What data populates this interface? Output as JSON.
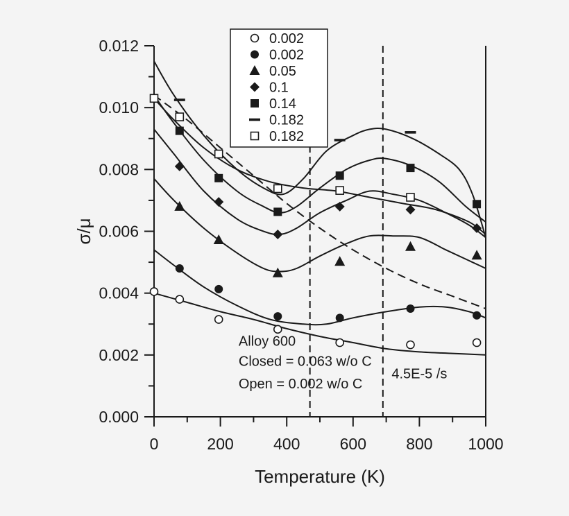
{
  "chart_data": {
    "type": "scatter",
    "title": "",
    "xlabel": "Temperature (K)",
    "ylabel": "σ/μ",
    "xlim": [
      0,
      1000
    ],
    "ylim": [
      0.0,
      0.012
    ],
    "x_ticks": [
      "0",
      "200",
      "400",
      "600",
      "800",
      "1000"
    ],
    "y_ticks": [
      "0.000",
      "0.002",
      "0.004",
      "0.006",
      "0.008",
      "0.010",
      "0.012"
    ],
    "y_tick_values": [
      0.0,
      0.002,
      0.004,
      0.006,
      0.008,
      0.01,
      0.012
    ],
    "x_tick_values": [
      0,
      200,
      400,
      600,
      800,
      1000
    ],
    "legend_position": "top-center",
    "series": [
      {
        "name": "0.002",
        "marker": "open-circle",
        "points": [
          [
            0,
            0.00405
          ],
          [
            77,
            0.0038
          ],
          [
            195,
            0.00315
          ],
          [
            373,
            0.00283
          ],
          [
            560,
            0.0024
          ],
          [
            773,
            0.00233
          ],
          [
            973,
            0.0024
          ]
        ]
      },
      {
        "name": "0.002",
        "marker": "filled-circle",
        "points": [
          [
            77,
            0.0048
          ],
          [
            195,
            0.00413
          ],
          [
            373,
            0.00325
          ],
          [
            560,
            0.0032
          ],
          [
            773,
            0.0035
          ],
          [
            973,
            0.00328
          ]
        ]
      },
      {
        "name": "0.05",
        "marker": "filled-triangle",
        "points": [
          [
            77,
            0.0068
          ],
          [
            195,
            0.00572
          ],
          [
            373,
            0.00465
          ],
          [
            560,
            0.00502
          ],
          [
            773,
            0.0055
          ],
          [
            973,
            0.00522
          ]
        ]
      },
      {
        "name": "0.1",
        "marker": "filled-diamond",
        "points": [
          [
            77,
            0.0081
          ],
          [
            195,
            0.00695
          ],
          [
            373,
            0.0059
          ],
          [
            560,
            0.0068
          ],
          [
            773,
            0.0067
          ],
          [
            973,
            0.0061
          ]
        ]
      },
      {
        "name": "0.14",
        "marker": "filled-square",
        "points": [
          [
            77,
            0.00925
          ],
          [
            195,
            0.00772
          ],
          [
            373,
            0.00663
          ],
          [
            560,
            0.0078
          ],
          [
            773,
            0.00805
          ],
          [
            973,
            0.00688
          ]
        ]
      },
      {
        "name": "0.182",
        "marker": "dash",
        "points": [
          [
            77,
            0.01025
          ],
          [
            560,
            0.00895
          ],
          [
            773,
            0.0092
          ]
        ]
      },
      {
        "name": "0.182",
        "marker": "open-square",
        "points": [
          [
            0,
            0.0103
          ],
          [
            77,
            0.0097
          ],
          [
            195,
            0.0085
          ],
          [
            373,
            0.00738
          ],
          [
            560,
            0.00732
          ],
          [
            773,
            0.0071
          ]
        ]
      }
    ],
    "fit_curves": [
      {
        "name": "fit-0.002-open",
        "style": "solid",
        "points": [
          [
            0,
            0.004
          ],
          [
            100,
            0.0037
          ],
          [
            200,
            0.0034
          ],
          [
            300,
            0.00315
          ],
          [
            400,
            0.00285
          ],
          [
            500,
            0.0026
          ],
          [
            600,
            0.0024
          ],
          [
            700,
            0.0022
          ],
          [
            800,
            0.0021
          ],
          [
            900,
            0.00205
          ],
          [
            1000,
            0.002
          ]
        ]
      },
      {
        "name": "fit-0.002-filled",
        "style": "solid",
        "points": [
          [
            0,
            0.0054
          ],
          [
            60,
            0.0049
          ],
          [
            150,
            0.0042
          ],
          [
            250,
            0.0036
          ],
          [
            350,
            0.00315
          ],
          [
            450,
            0.003
          ],
          [
            520,
            0.003
          ],
          [
            600,
            0.0032
          ],
          [
            700,
            0.0034
          ],
          [
            800,
            0.00355
          ],
          [
            880,
            0.00355
          ],
          [
            950,
            0.0034
          ],
          [
            1000,
            0.0032
          ]
        ]
      },
      {
        "name": "fit-0.05",
        "style": "solid",
        "points": [
          [
            0,
            0.0077
          ],
          [
            60,
            0.007
          ],
          [
            150,
            0.0061
          ],
          [
            250,
            0.0053
          ],
          [
            330,
            0.0048
          ],
          [
            380,
            0.0047
          ],
          [
            430,
            0.0048
          ],
          [
            500,
            0.0052
          ],
          [
            580,
            0.0056
          ],
          [
            650,
            0.00585
          ],
          [
            720,
            0.00585
          ],
          [
            800,
            0.0058
          ],
          [
            880,
            0.0054
          ],
          [
            950,
            0.00505
          ],
          [
            1000,
            0.0048
          ]
        ]
      },
      {
        "name": "fit-0.1",
        "style": "solid",
        "points": [
          [
            0,
            0.0093
          ],
          [
            60,
            0.0085
          ],
          [
            150,
            0.0073
          ],
          [
            250,
            0.0064
          ],
          [
            330,
            0.006
          ],
          [
            380,
            0.0059
          ],
          [
            430,
            0.0061
          ],
          [
            500,
            0.0066
          ],
          [
            580,
            0.007
          ],
          [
            650,
            0.0073
          ],
          [
            720,
            0.0072
          ],
          [
            800,
            0.007
          ],
          [
            880,
            0.0066
          ],
          [
            950,
            0.0062
          ],
          [
            1000,
            0.0058
          ]
        ]
      },
      {
        "name": "fit-0.14",
        "style": "solid",
        "points": [
          [
            0,
            0.0104
          ],
          [
            60,
            0.0095
          ],
          [
            150,
            0.0083
          ],
          [
            250,
            0.0073
          ],
          [
            330,
            0.0068
          ],
          [
            380,
            0.0066
          ],
          [
            430,
            0.0068
          ],
          [
            500,
            0.0074
          ],
          [
            580,
            0.008
          ],
          [
            650,
            0.0083
          ],
          [
            700,
            0.00835
          ],
          [
            780,
            0.0081
          ],
          [
            860,
            0.0076
          ],
          [
            940,
            0.0068
          ],
          [
            1000,
            0.0063
          ]
        ]
      },
      {
        "name": "fit-0.182-peak",
        "style": "solid",
        "points": [
          [
            0,
            0.0115
          ],
          [
            60,
            0.0104
          ],
          [
            150,
            0.0091
          ],
          [
            250,
            0.008
          ],
          [
            330,
            0.0074
          ],
          [
            390,
            0.0072
          ],
          [
            450,
            0.0077
          ],
          [
            520,
            0.0086
          ],
          [
            600,
            0.0091
          ],
          [
            650,
            0.0093
          ],
          [
            700,
            0.0093
          ],
          [
            780,
            0.009
          ],
          [
            860,
            0.0085
          ],
          [
            920,
            0.008
          ],
          [
            960,
            0.0072
          ],
          [
            1000,
            0.0058
          ]
        ]
      },
      {
        "name": "fit-0.182-open",
        "style": "solid",
        "points": [
          [
            0,
            0.0103
          ],
          [
            60,
            0.0096
          ],
          [
            150,
            0.0087
          ],
          [
            250,
            0.008
          ],
          [
            350,
            0.0076
          ],
          [
            450,
            0.0074
          ],
          [
            550,
            0.0073
          ],
          [
            650,
            0.0071
          ],
          [
            750,
            0.0069
          ],
          [
            850,
            0.0067
          ],
          [
            950,
            0.0063
          ],
          [
            1000,
            0.0059
          ]
        ]
      },
      {
        "name": "fit-0.182-dashed",
        "style": "dashed",
        "points": [
          [
            0,
            0.0104
          ],
          [
            100,
            0.0096
          ],
          [
            200,
            0.0087
          ],
          [
            300,
            0.0078
          ],
          [
            400,
            0.0069
          ],
          [
            500,
            0.0061
          ],
          [
            600,
            0.0054
          ],
          [
            700,
            0.0048
          ],
          [
            800,
            0.0043
          ],
          [
            900,
            0.0039
          ],
          [
            1000,
            0.0035
          ]
        ]
      }
    ],
    "reference_lines": [
      {
        "x": 470,
        "style": "dashed"
      },
      {
        "x": 690,
        "style": "dashed"
      },
      {
        "x": 1000,
        "style": "solid"
      }
    ],
    "annotations": [
      {
        "text": "Alloy 600",
        "x": 255,
        "y": 0.0023
      },
      {
        "text": "Closed = 0.063 w/o C",
        "x": 255,
        "y": 0.00165
      },
      {
        "text": "Open = 0.002 w/o C",
        "x": 255,
        "y": 0.00092
      },
      {
        "text": "4.5E-5 /s",
        "x": 800,
        "y": 0.00125
      }
    ]
  }
}
